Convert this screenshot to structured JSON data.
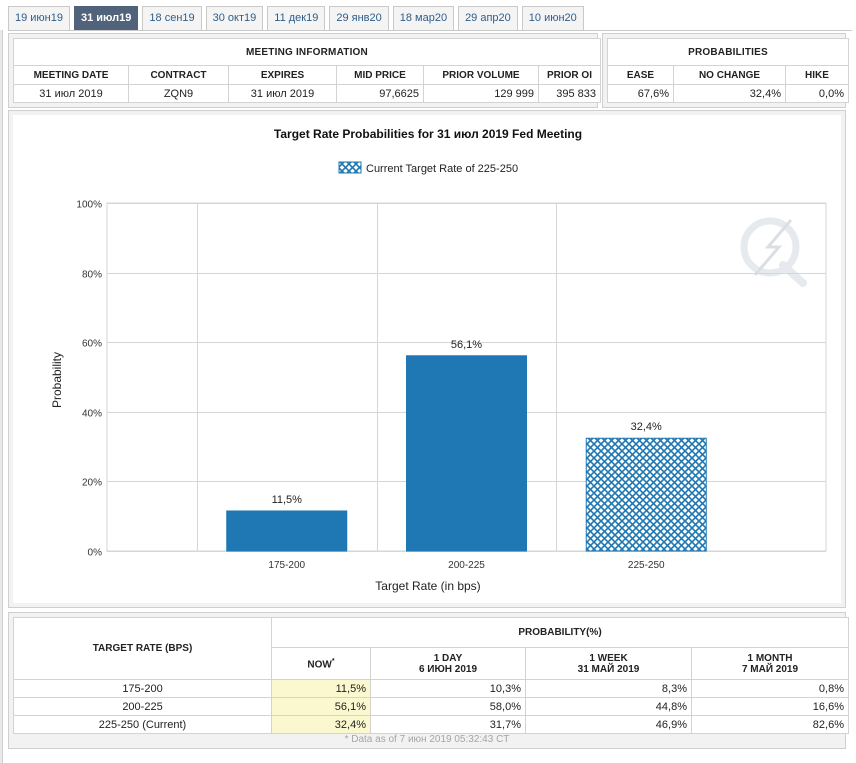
{
  "tabs": [
    {
      "label": "19 июн19",
      "active": false
    },
    {
      "label": "31 июл19",
      "active": true
    },
    {
      "label": "18 сен19",
      "active": false
    },
    {
      "label": "30 окт19",
      "active": false
    },
    {
      "label": "11 дек19",
      "active": false
    },
    {
      "label": "29 янв20",
      "active": false
    },
    {
      "label": "18 мар20",
      "active": false
    },
    {
      "label": "29 апр20",
      "active": false
    },
    {
      "label": "10 июн20",
      "active": false
    }
  ],
  "meeting_info": {
    "title": "MEETING INFORMATION",
    "headers": [
      "MEETING DATE",
      "CONTRACT",
      "EXPIRES",
      "MID PRICE",
      "PRIOR VOLUME",
      "PRIOR OI"
    ],
    "values": [
      "31 июл 2019",
      "ZQN9",
      "31 июл 2019",
      "97,6625",
      "129 999",
      "395 833"
    ]
  },
  "probabilities": {
    "title": "PROBABILITIES",
    "headers": [
      "EASE",
      "NO CHANGE",
      "HIKE"
    ],
    "values": [
      "67,6%",
      "32,4%",
      "0,0%"
    ]
  },
  "chart_data": {
    "type": "bar",
    "title": "Target Rate Probabilities for 31 июл 2019 Fed Meeting",
    "legend": "Current Target Rate of 225-250",
    "xlabel": "Target Rate (in bps)",
    "ylabel": "Probability",
    "categories": [
      "175-200",
      "200-225",
      "225-250"
    ],
    "values": [
      11.5,
      56.1,
      32.4
    ],
    "data_labels": [
      "11,5%",
      "56,1%",
      "32,4%"
    ],
    "highlight_index": 2,
    "ylim": [
      0,
      100
    ],
    "yticks": [
      0,
      20,
      40,
      60,
      80,
      100
    ],
    "ytick_labels": [
      "0%",
      "20%",
      "40%",
      "60%",
      "80%",
      "100%"
    ],
    "grid": true,
    "legend_position": "top-center",
    "colors": {
      "bar": "#1f77b4",
      "hatch_bg": "#ffffff",
      "grid": "#d6d6d6"
    }
  },
  "prob_table": {
    "target_header": "TARGET RATE (BPS)",
    "group_header": "PROBABILITY(%)",
    "now_header": "NOW",
    "now_sup": "*",
    "col_headers": [
      {
        "line1": "1 DAY",
        "line2": "6 ИЮН 2019"
      },
      {
        "line1": "1 WEEK",
        "line2": "31 МАЙ 2019"
      },
      {
        "line1": "1 MONTH",
        "line2": "7 МАЙ 2019"
      }
    ],
    "rows": [
      {
        "rate": "175-200",
        "now": "11,5%",
        "day": "10,3%",
        "week": "8,3%",
        "month": "0,8%"
      },
      {
        "rate": "200-225",
        "now": "56,1%",
        "day": "58,0%",
        "week": "44,8%",
        "month": "16,6%"
      },
      {
        "rate": "225-250 (Current)",
        "now": "32,4%",
        "day": "31,7%",
        "week": "46,9%",
        "month": "82,6%"
      }
    ],
    "footnote": "* Data as of 7 июн 2019 05:32:43 CT"
  }
}
